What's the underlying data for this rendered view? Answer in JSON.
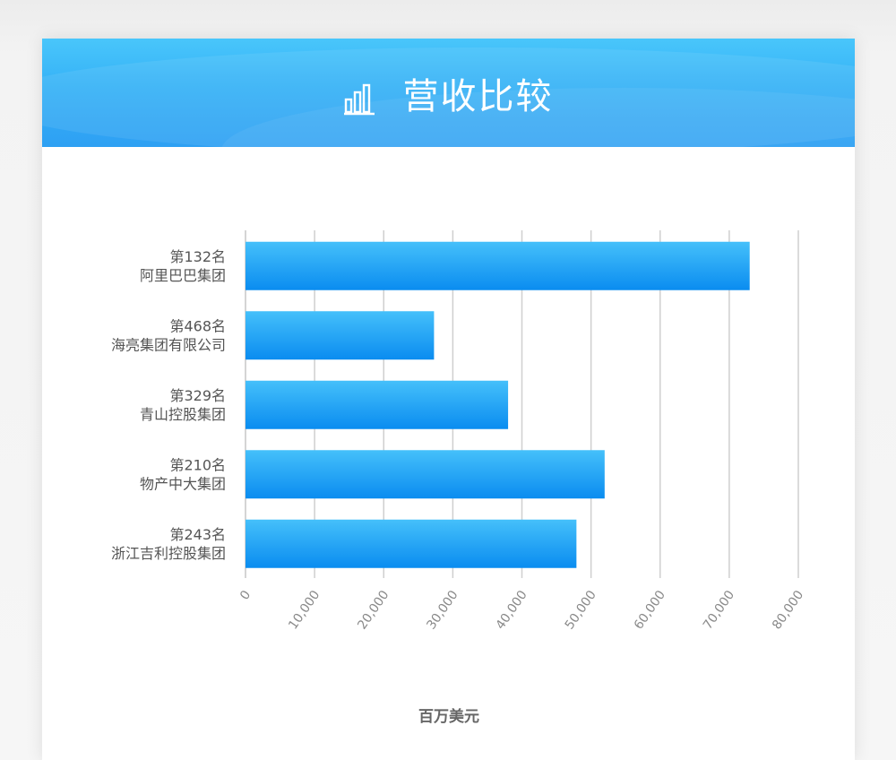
{
  "header": {
    "title": "营收比较",
    "icon": "bar-chart-icon"
  },
  "colors": {
    "banner": "#35b1f6",
    "bar_top": "#3fbaf9",
    "bar_bottom": "#0a8cf0",
    "grid": "#cfcfcf"
  },
  "chart_data": {
    "type": "bar",
    "orientation": "horizontal",
    "categories": [
      [
        "第132名",
        "阿里巴巴集团"
      ],
      [
        "第468名",
        "海亮集团有限公司"
      ],
      [
        "第329名",
        "青山控股集团"
      ],
      [
        "第210名",
        "物产中大集团"
      ],
      [
        "第243名",
        "浙江吉利控股集团"
      ]
    ],
    "values": [
      72960,
      27280,
      38000,
      51970,
      47890
    ],
    "xlabel": "百万美元",
    "ylabel": "",
    "xlim": [
      0,
      80000
    ],
    "x_ticks": [
      "0",
      "10,000",
      "20,000",
      "30,000",
      "40,000",
      "50,000",
      "60,000",
      "70,000",
      "80,000"
    ],
    "grid": "vertical"
  }
}
